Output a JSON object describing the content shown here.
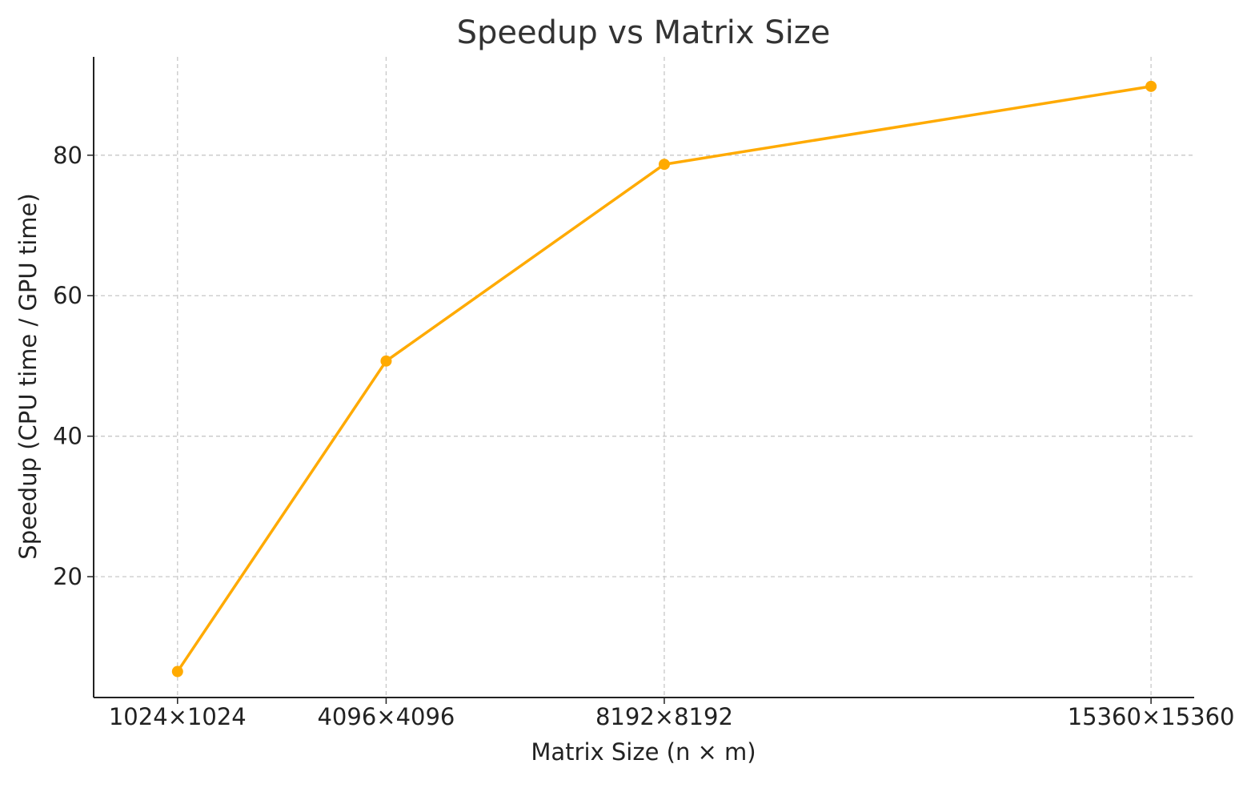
{
  "chart_data": {
    "type": "line",
    "title": "Speedup vs Matrix Size",
    "xlabel": "Matrix Size (n × m)",
    "ylabel": "Speedup (CPU time / GPU time)",
    "x": [
      1024,
      4096,
      8192,
      15360
    ],
    "x_tick_labels": [
      "1024×1024",
      "4096×4096",
      "8192×8192",
      "15360×15360"
    ],
    "xlim": [
      -211.2,
      15995.2
    ],
    "ylim": [
      2.8,
      94.0
    ],
    "y_ticks": [
      20,
      40,
      60,
      80
    ],
    "grid": true,
    "series": [
      {
        "values": [
          6.5,
          50.7,
          78.7,
          89.8
        ],
        "color": "#FFAA00",
        "marker": "circle"
      }
    ]
  }
}
